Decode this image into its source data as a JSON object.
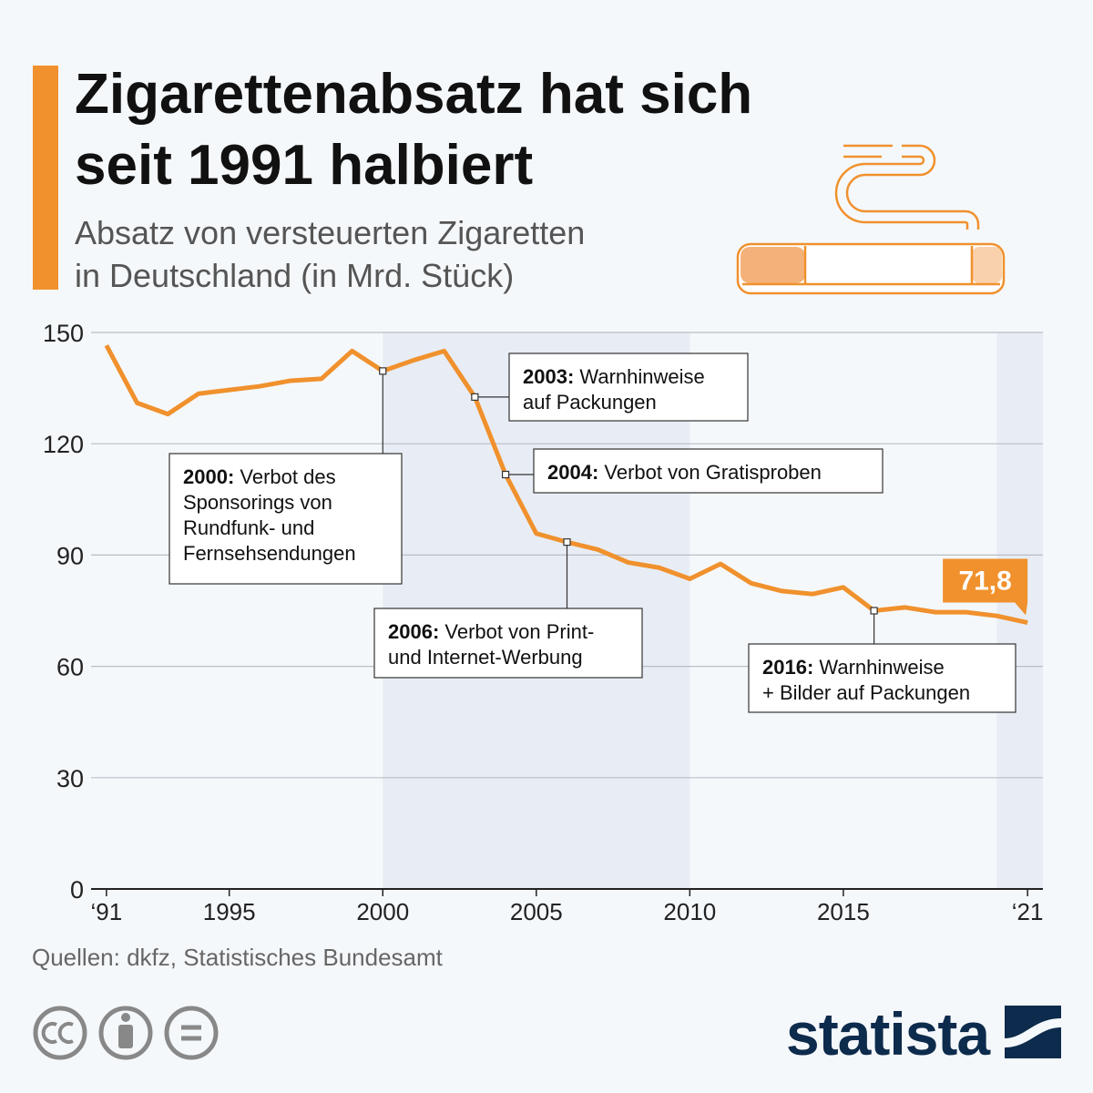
{
  "chart_data": {
    "type": "line",
    "title": [
      "Zigarettenabsatz hat sich",
      "seit 1991 halbiert"
    ],
    "subtitle": [
      "Absatz von versteuerten Zigaretten",
      "in Deutschland (in Mrd. Stück)"
    ],
    "x": [
      1991,
      1992,
      1993,
      1994,
      1995,
      1996,
      1997,
      1998,
      1999,
      2000,
      2001,
      2002,
      2003,
      2004,
      2005,
      2006,
      2007,
      2008,
      2009,
      2010,
      2011,
      2012,
      2013,
      2014,
      2015,
      2016,
      2017,
      2018,
      2019,
      2020,
      2021
    ],
    "values": [
      146.5,
      131,
      128,
      133.5,
      134.5,
      135.5,
      137,
      137.5,
      145,
      139.6,
      142.5,
      145,
      132.6,
      111.7,
      95.8,
      93.5,
      91.5,
      88,
      86.6,
      83.6,
      87.6,
      82.4,
      80.3,
      79.5,
      81.3,
      75,
      75.9,
      74.6,
      74.6,
      73.6,
      71.8
    ],
    "value_labels": [
      null,
      null,
      null,
      null,
      null,
      null,
      null,
      null,
      null,
      null,
      null,
      null,
      null,
      null,
      null,
      null,
      null,
      null,
      null,
      null,
      null,
      null,
      null,
      null,
      null,
      null,
      null,
      null,
      null,
      null,
      "71,8"
    ],
    "color": "#f0912d",
    "xlim": [
      1990.5,
      2021.5
    ],
    "xticks": [
      {
        "value": 1991,
        "label": "‘91"
      },
      1995,
      2000,
      2005,
      2010,
      2015,
      {
        "value": 2021,
        "label": "‘21"
      }
    ],
    "ylim": [
      0,
      150
    ],
    "yticks": [
      0,
      30,
      60,
      90,
      120,
      150
    ],
    "grid": true,
    "shaded_ranges": [
      [
        2000,
        2010
      ],
      [
        2020,
        2021.5
      ]
    ],
    "annotations": [
      {
        "x": 2000,
        "label": "2000:",
        "lines": [
          "Verbot des",
          "Sponsorings von",
          "Rundfunk- und",
          "Fernsehsendungen"
        ]
      },
      {
        "x": 2003,
        "label": "2003:",
        "lines": [
          "Warnhinweise",
          "auf Packungen"
        ]
      },
      {
        "x": 2004,
        "label": "2004:",
        "lines": [
          "Verbot von Gratisproben"
        ]
      },
      {
        "x": 2006,
        "label": "2006:",
        "lines": [
          "Verbot von Print-",
          "und Internet-Werbung"
        ]
      },
      {
        "x": 2016,
        "label": "2016:",
        "lines": [
          "Warnhinweise",
          "+ Bilder auf Packungen"
        ]
      }
    ],
    "source": "Quellen: dkfz, Statistisches Bundesamt",
    "brand": "statista"
  }
}
